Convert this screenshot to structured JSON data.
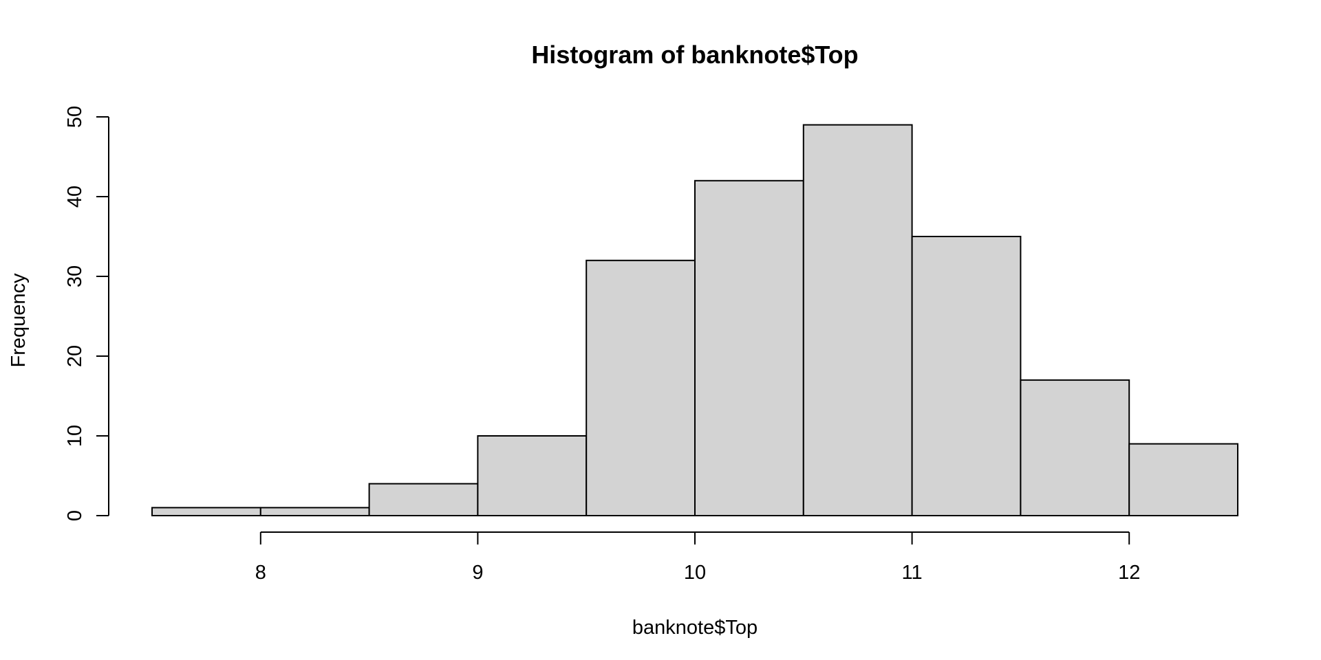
{
  "chart_data": {
    "type": "bar",
    "title": "Histogram of banknote$Top",
    "xlabel": "banknote$Top",
    "ylabel": "Frequency",
    "bin_edges": [
      7.5,
      8.0,
      8.5,
      9.0,
      9.5,
      10.0,
      10.5,
      11.0,
      11.5,
      12.0,
      12.5
    ],
    "values": [
      1,
      1,
      4,
      10,
      32,
      42,
      49,
      35,
      17,
      9
    ],
    "x_ticks": [
      8,
      9,
      10,
      11,
      12
    ],
    "y_ticks": [
      0,
      10,
      20,
      30,
      40,
      50
    ],
    "xlim": [
      7.5,
      12.5
    ],
    "ylim": [
      0,
      50
    ],
    "grid": false,
    "bar_color": "#d3d3d3"
  }
}
